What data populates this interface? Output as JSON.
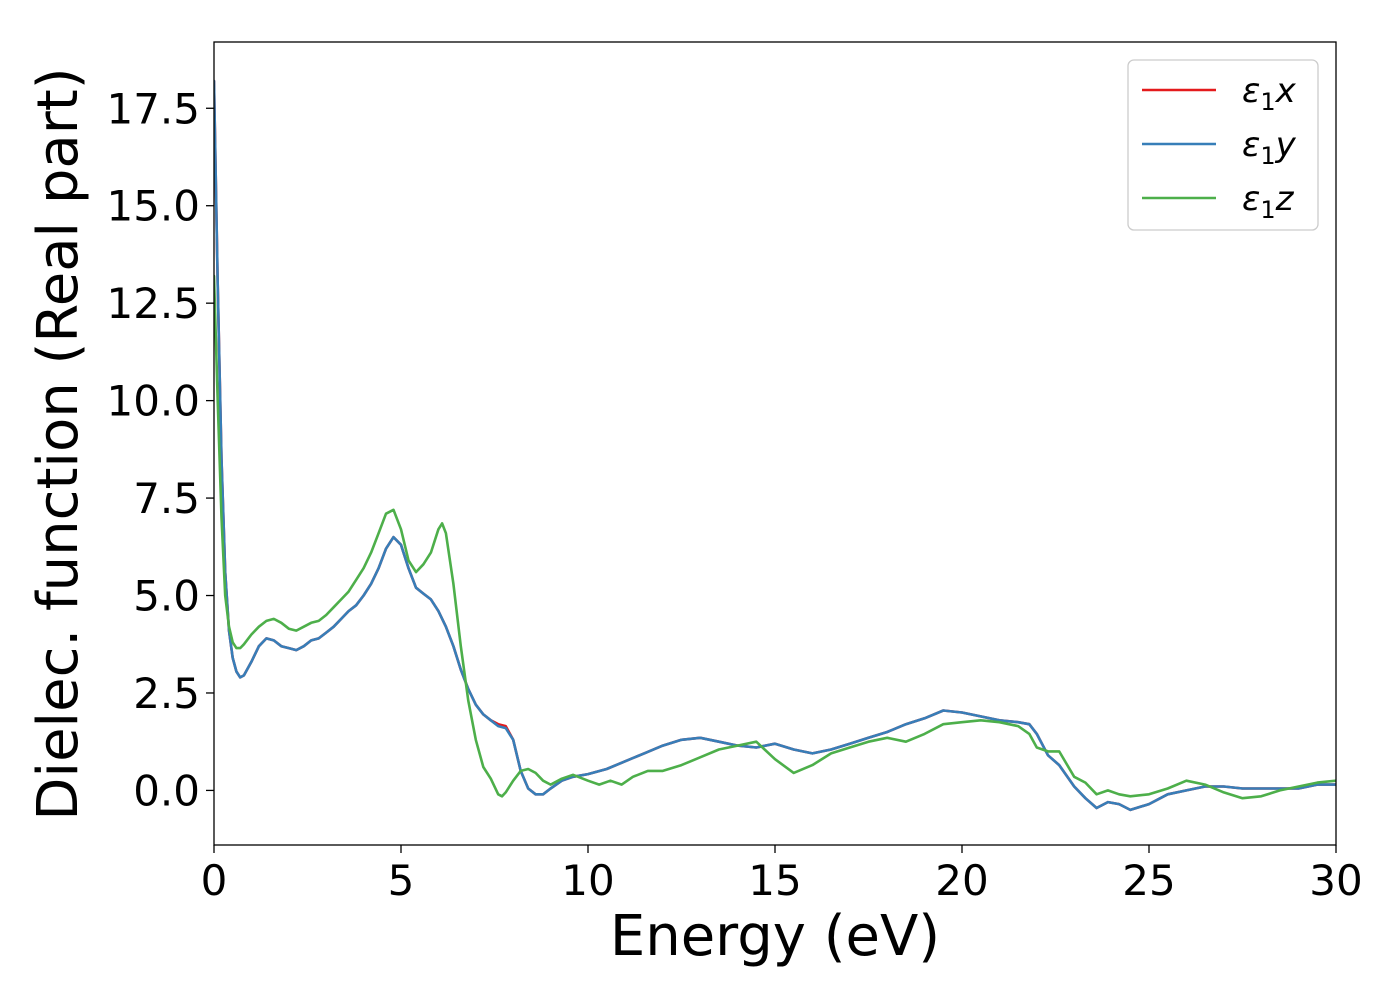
{
  "chart_data": {
    "type": "line",
    "title": "",
    "xlabel": "Energy (eV)",
    "ylabel": "Dielec. function (Real part)",
    "xlim": [
      0,
      30
    ],
    "ylim": [
      -1.4,
      19.2
    ],
    "xticks": [
      0,
      5,
      10,
      15,
      20,
      25,
      30
    ],
    "xtick_labels": [
      "0",
      "5",
      "10",
      "15",
      "20",
      "25",
      "30"
    ],
    "yticks": [
      0,
      2.5,
      5,
      7.5,
      10,
      12.5,
      15,
      17.5
    ],
    "ytick_labels": [
      "0.0",
      "2.5",
      "5.0",
      "7.5",
      "10.0",
      "12.5",
      "15.0",
      "17.5"
    ],
    "grid": false,
    "legend_position": "top-right",
    "series": [
      {
        "name": "ε₁x",
        "legend_base": "ε",
        "legend_sub": "1",
        "legend_suffix": "x",
        "color": "#e41a1c",
        "x": [
          0,
          0.1,
          0.2,
          0.3,
          0.4,
          0.5,
          0.6,
          0.7,
          0.8,
          1.0,
          1.2,
          1.4,
          1.6,
          1.8,
          2.0,
          2.2,
          2.4,
          2.6,
          2.8,
          3.0,
          3.2,
          3.4,
          3.6,
          3.8,
          4.0,
          4.2,
          4.4,
          4.6,
          4.8,
          5.0,
          5.2,
          5.4,
          5.6,
          5.8,
          6.0,
          6.2,
          6.4,
          6.6,
          6.8,
          7.0,
          7.2,
          7.4,
          7.6,
          7.8,
          8.0,
          8.2,
          8.4,
          8.6,
          8.8,
          9.0,
          9.3,
          9.6,
          10.0,
          10.5,
          11.0,
          11.5,
          12.0,
          12.5,
          13.0,
          13.5,
          14.0,
          14.5,
          15.0,
          15.5,
          16.0,
          16.5,
          17.0,
          17.5,
          18.0,
          18.5,
          19.0,
          19.5,
          20.0,
          20.5,
          21.0,
          21.5,
          21.8,
          22.0,
          22.3,
          22.6,
          23.0,
          23.3,
          23.6,
          23.9,
          24.2,
          24.5,
          25.0,
          25.5,
          26.0,
          26.5,
          27.0,
          27.5,
          28.0,
          28.5,
          29.0,
          29.5,
          30.0
        ],
        "y": [
          18.2,
          13.0,
          8.5,
          5.6,
          4.1,
          3.4,
          3.05,
          2.9,
          2.95,
          3.3,
          3.7,
          3.9,
          3.85,
          3.7,
          3.65,
          3.6,
          3.7,
          3.85,
          3.9,
          4.05,
          4.2,
          4.4,
          4.6,
          4.75,
          5.0,
          5.3,
          5.7,
          6.2,
          6.5,
          6.3,
          5.7,
          5.2,
          5.05,
          4.9,
          4.6,
          4.2,
          3.7,
          3.1,
          2.6,
          2.2,
          1.95,
          1.8,
          1.7,
          1.65,
          1.3,
          0.5,
          0.05,
          -0.1,
          -0.1,
          0.05,
          0.25,
          0.35,
          0.42,
          0.55,
          0.75,
          0.95,
          1.15,
          1.3,
          1.35,
          1.25,
          1.15,
          1.1,
          1.2,
          1.05,
          0.95,
          1.05,
          1.2,
          1.35,
          1.5,
          1.7,
          1.85,
          2.05,
          2.0,
          1.9,
          1.8,
          1.75,
          1.7,
          1.45,
          0.9,
          0.65,
          0.1,
          -0.2,
          -0.45,
          -0.3,
          -0.35,
          -0.5,
          -0.35,
          -0.1,
          0.0,
          0.1,
          0.1,
          0.05,
          0.05,
          0.05,
          0.05,
          0.15,
          0.15
        ]
      },
      {
        "name": "ε₁y",
        "legend_base": "ε",
        "legend_sub": "1",
        "legend_suffix": "y",
        "color": "#377eb8",
        "x": [
          0,
          0.1,
          0.2,
          0.3,
          0.4,
          0.5,
          0.6,
          0.7,
          0.8,
          1.0,
          1.2,
          1.4,
          1.6,
          1.8,
          2.0,
          2.2,
          2.4,
          2.6,
          2.8,
          3.0,
          3.2,
          3.4,
          3.6,
          3.8,
          4.0,
          4.2,
          4.4,
          4.6,
          4.8,
          5.0,
          5.2,
          5.4,
          5.6,
          5.8,
          6.0,
          6.2,
          6.4,
          6.6,
          6.8,
          7.0,
          7.2,
          7.4,
          7.6,
          7.8,
          8.0,
          8.2,
          8.4,
          8.6,
          8.8,
          9.0,
          9.3,
          9.6,
          10.0,
          10.5,
          11.0,
          11.5,
          12.0,
          12.5,
          13.0,
          13.5,
          14.0,
          14.5,
          15.0,
          15.5,
          16.0,
          16.5,
          17.0,
          17.5,
          18.0,
          18.5,
          19.0,
          19.5,
          20.0,
          20.5,
          21.0,
          21.5,
          21.8,
          22.0,
          22.3,
          22.6,
          23.0,
          23.3,
          23.6,
          23.9,
          24.2,
          24.5,
          25.0,
          25.5,
          26.0,
          26.5,
          27.0,
          27.5,
          28.0,
          28.5,
          29.0,
          29.5,
          30.0
        ],
        "y": [
          18.2,
          13.0,
          8.5,
          5.6,
          4.1,
          3.4,
          3.05,
          2.9,
          2.95,
          3.3,
          3.7,
          3.9,
          3.85,
          3.7,
          3.65,
          3.6,
          3.7,
          3.85,
          3.9,
          4.05,
          4.2,
          4.4,
          4.6,
          4.75,
          5.0,
          5.3,
          5.7,
          6.2,
          6.5,
          6.3,
          5.7,
          5.2,
          5.05,
          4.9,
          4.6,
          4.2,
          3.7,
          3.1,
          2.6,
          2.2,
          1.95,
          1.8,
          1.65,
          1.6,
          1.3,
          0.5,
          0.05,
          -0.1,
          -0.1,
          0.05,
          0.25,
          0.35,
          0.42,
          0.55,
          0.75,
          0.95,
          1.15,
          1.3,
          1.35,
          1.25,
          1.15,
          1.1,
          1.2,
          1.05,
          0.95,
          1.05,
          1.2,
          1.35,
          1.5,
          1.7,
          1.85,
          2.05,
          2.0,
          1.9,
          1.8,
          1.75,
          1.7,
          1.45,
          0.9,
          0.65,
          0.1,
          -0.2,
          -0.45,
          -0.3,
          -0.35,
          -0.5,
          -0.35,
          -0.1,
          0.0,
          0.1,
          0.1,
          0.05,
          0.05,
          0.05,
          0.05,
          0.15,
          0.15
        ]
      },
      {
        "name": "ε₁z",
        "legend_base": "ε",
        "legend_sub": "1",
        "legend_suffix": "z",
        "color": "#4daf4a",
        "x": [
          0,
          0.1,
          0.2,
          0.3,
          0.4,
          0.5,
          0.6,
          0.7,
          0.8,
          1.0,
          1.2,
          1.4,
          1.6,
          1.8,
          2.0,
          2.2,
          2.4,
          2.6,
          2.8,
          3.0,
          3.2,
          3.4,
          3.6,
          3.8,
          4.0,
          4.2,
          4.4,
          4.6,
          4.8,
          5.0,
          5.2,
          5.4,
          5.6,
          5.8,
          6.0,
          6.1,
          6.2,
          6.4,
          6.6,
          6.8,
          7.0,
          7.2,
          7.4,
          7.6,
          7.7,
          7.8,
          8.0,
          8.2,
          8.4,
          8.6,
          8.8,
          9.0,
          9.3,
          9.6,
          10.0,
          10.3,
          10.6,
          10.9,
          11.2,
          11.6,
          12.0,
          12.5,
          13.0,
          13.5,
          14.0,
          14.5,
          15.0,
          15.5,
          16.0,
          16.5,
          17.0,
          17.5,
          18.0,
          18.5,
          19.0,
          19.5,
          20.0,
          20.5,
          21.0,
          21.5,
          21.8,
          22.0,
          22.3,
          22.6,
          23.0,
          23.3,
          23.6,
          23.9,
          24.2,
          24.5,
          25.0,
          25.5,
          26.0,
          26.5,
          27.0,
          27.5,
          28.0,
          28.5,
          29.0,
          29.5,
          30.0
        ],
        "y": [
          13.2,
          10.0,
          7.0,
          5.0,
          4.2,
          3.8,
          3.65,
          3.65,
          3.75,
          4.0,
          4.2,
          4.35,
          4.4,
          4.3,
          4.15,
          4.1,
          4.2,
          4.3,
          4.35,
          4.5,
          4.7,
          4.9,
          5.1,
          5.4,
          5.7,
          6.1,
          6.6,
          7.1,
          7.2,
          6.7,
          5.9,
          5.6,
          5.8,
          6.1,
          6.7,
          6.85,
          6.6,
          5.3,
          3.7,
          2.3,
          1.3,
          0.6,
          0.3,
          -0.1,
          -0.15,
          -0.05,
          0.25,
          0.5,
          0.55,
          0.45,
          0.25,
          0.15,
          0.3,
          0.4,
          0.25,
          0.15,
          0.25,
          0.15,
          0.35,
          0.5,
          0.5,
          0.65,
          0.85,
          1.05,
          1.15,
          1.25,
          0.8,
          0.45,
          0.65,
          0.95,
          1.1,
          1.25,
          1.35,
          1.25,
          1.45,
          1.7,
          1.75,
          1.8,
          1.75,
          1.65,
          1.45,
          1.1,
          1.0,
          1.0,
          0.35,
          0.2,
          -0.1,
          0.0,
          -0.1,
          -0.15,
          -0.1,
          0.05,
          0.25,
          0.15,
          -0.05,
          -0.2,
          -0.15,
          0.0,
          0.1,
          0.2,
          0.25
        ]
      }
    ]
  }
}
